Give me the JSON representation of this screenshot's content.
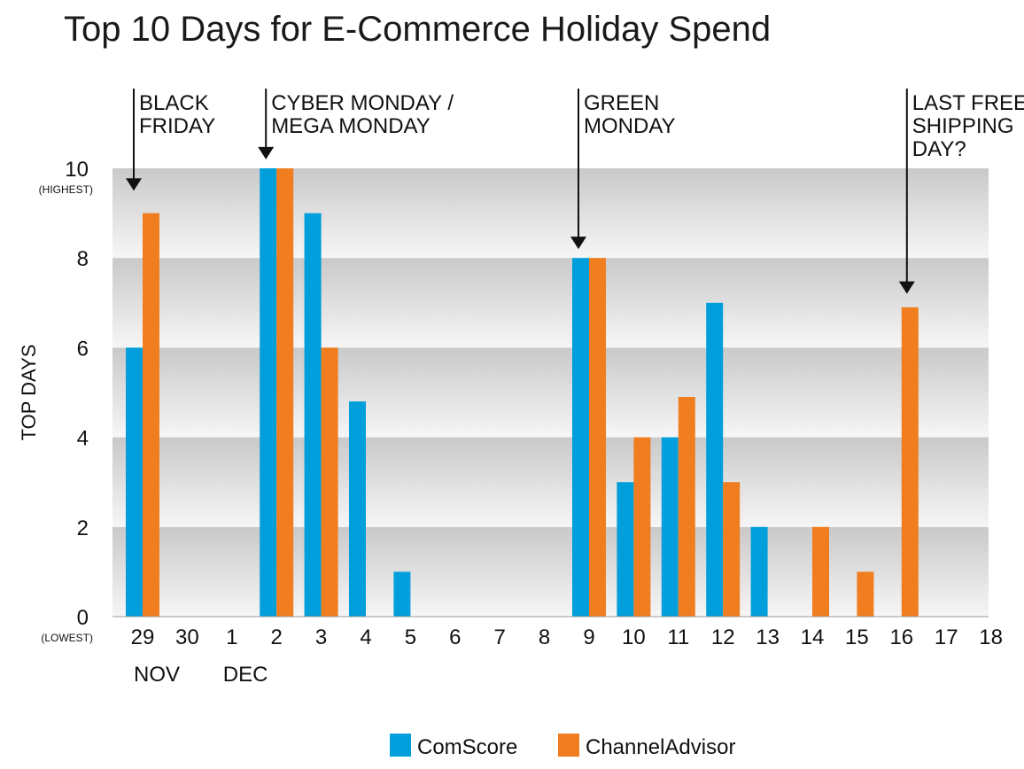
{
  "chart_data": {
    "type": "bar",
    "title": "Top 10 Days for E-Commerce Holiday Spend",
    "ylabel": "TOP DAYS",
    "ylim": [
      0,
      10
    ],
    "yticks": [
      0,
      2,
      4,
      6,
      8,
      10
    ],
    "ytick_sub": {
      "0": "(LOWEST)",
      "10": "(HIGHEST)"
    },
    "categories": [
      "29",
      "30",
      "1",
      "2",
      "3",
      "4",
      "5",
      "6",
      "7",
      "8",
      "9",
      "10",
      "11",
      "12",
      "13",
      "14",
      "15",
      "16",
      "17",
      "18"
    ],
    "month_labels": [
      {
        "category": "29",
        "label": "NOV"
      },
      {
        "category": "1",
        "label": "DEC"
      }
    ],
    "series": [
      {
        "name": "ComScore",
        "color": "#009fdb",
        "values": [
          6,
          0,
          0,
          10,
          9,
          4.8,
          1,
          0,
          0,
          0,
          8,
          3,
          4,
          7,
          2,
          0,
          0,
          0,
          0,
          0
        ]
      },
      {
        "name": "ChannelAdvisor",
        "color": "#f07d1f",
        "values": [
          9,
          0,
          0,
          10,
          6,
          0,
          0,
          0,
          0,
          0,
          8,
          4,
          4.9,
          3,
          0,
          2,
          1,
          6.9,
          0,
          0
        ]
      }
    ],
    "annotations": [
      {
        "lines": [
          "BLACK",
          "FRIDAY"
        ],
        "category": "29",
        "side": "left",
        "arrow_to_value": 9.5
      },
      {
        "lines": [
          "CYBER MONDAY /",
          "MEGA MONDAY"
        ],
        "category": "2",
        "side": "left",
        "arrow_to_value": 10.2
      },
      {
        "lines": [
          "GREEN",
          "MONDAY"
        ],
        "category": "9",
        "side": "left",
        "arrow_to_value": 8.2
      },
      {
        "lines": [
          "LAST FREE",
          "SHIPPING",
          "DAY?"
        ],
        "category": "16",
        "side": "center",
        "arrow_to_value": 7.2
      }
    ],
    "legend_position": "bottom-center",
    "grid": "alternating horizontal bands"
  }
}
